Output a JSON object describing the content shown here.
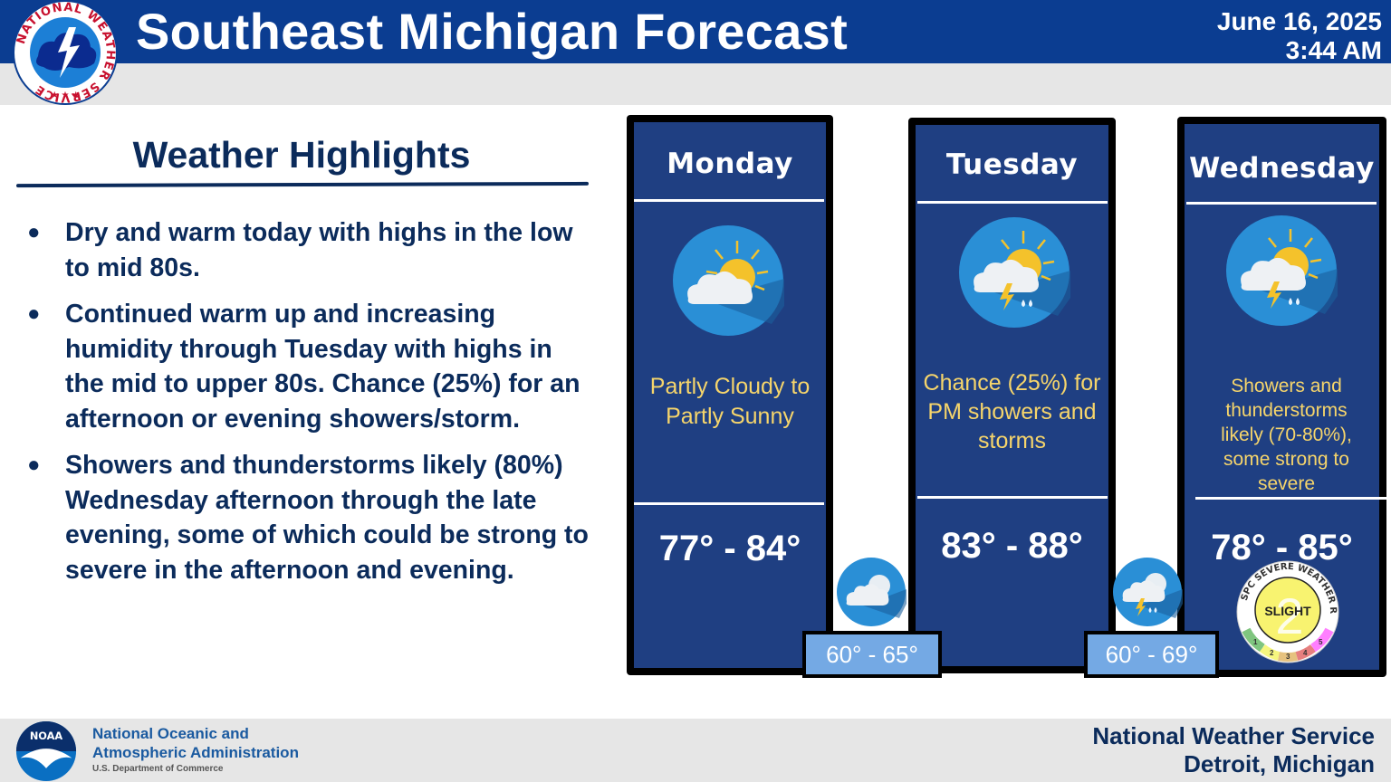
{
  "header": {
    "title": "Southeast Michigan Forecast",
    "date": "June 16, 2025",
    "time": "3:44 AM",
    "logo_text": "NATIONAL WEATHER SERVICE",
    "logo_icon": "nws-logo-icon"
  },
  "highlights": {
    "title": "Weather Highlights",
    "items": [
      "Dry and warm today with highs in the low to mid 80s.",
      "Continued warm up and increasing humidity through Tuesday with highs in the mid to upper 80s. Chance (25%) for an afternoon or evening showers/storm.",
      "Showers and thunderstorms likely (80%) Wednesday afternoon through the late evening, some of which could be strong to severe in the afternoon and evening."
    ]
  },
  "forecast": {
    "days": [
      {
        "name": "Monday",
        "icon": "partly-cloudy-icon",
        "description": "Partly Cloudy to Partly Sunny",
        "temp": "77° - 84°"
      },
      {
        "name": "Tuesday",
        "icon": "thunderstorm-chance-icon",
        "description": "Chance (25%) for PM showers and storms",
        "temp": "83° - 88°"
      },
      {
        "name": "Wednesday",
        "icon": "thunderstorm-likely-icon",
        "description": "Showers and thunderstorms likely (70-80%), some strong to severe",
        "temp": "78° - 85°"
      }
    ],
    "nights": [
      {
        "icon": "night-cloudy-icon",
        "temp": "60° - 65°"
      },
      {
        "icon": "night-thunderstorm-icon",
        "temp": "60° - 69°"
      }
    ],
    "spc_risk": {
      "ring_text": "SPC SEVERE WEATHER RISK",
      "level": "2",
      "label": "SLIGHT",
      "scale": [
        "1",
        "2",
        "3",
        "4",
        "5"
      ],
      "scale_colors": [
        "#7fc57f",
        "#f6f67f",
        "#e6c27f",
        "#e67f7f",
        "#ff7fff"
      ]
    }
  },
  "footer": {
    "org_line1": "National Oceanic and",
    "org_line2": "Atmospheric Administration",
    "dept": "U.S. Department of Commerce",
    "noaa_logo_text": "NOAA",
    "office_line1": "National Weather Service",
    "office_line2": "Detroit, Michigan"
  },
  "colors": {
    "header_blue": "#0b3d91",
    "panel_blue": "#1f3f82",
    "text_navy": "#0b2b5b",
    "description_yellow": "#f6d56b",
    "night_box": "#74a9e4"
  }
}
